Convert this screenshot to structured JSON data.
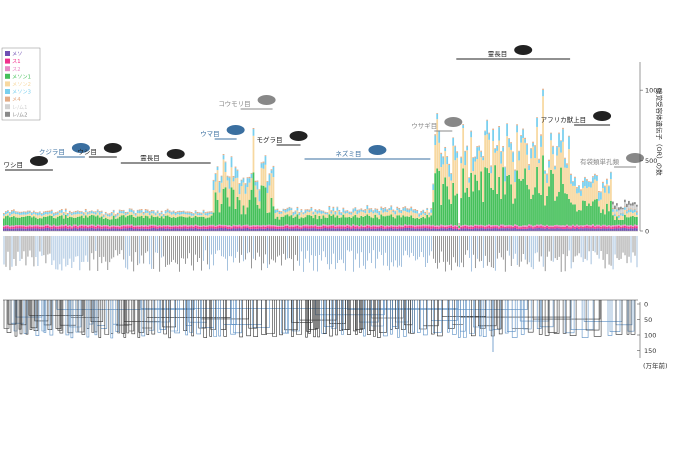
{
  "chart_data": {
    "type": "bar",
    "stacked": true,
    "legend": [
      {
        "name": "メソ",
        "color": "#6f4fb3"
      },
      {
        "name": "ス1",
        "color": "#f0308c"
      },
      {
        "name": "ス2",
        "color": "#e889c6"
      },
      {
        "name": "メソン1",
        "color": "#45c05a"
      },
      {
        "name": "メソン2",
        "color": "#f7d8a0"
      },
      {
        "name": "メソン3",
        "color": "#78cfee"
      },
      {
        "name": "メ4",
        "color": "#e3ab85"
      },
      {
        "name": "レ/ム1",
        "color": "#d2d2d2"
      },
      {
        "name": "レ/ム2",
        "color": "#8a8a8a"
      }
    ],
    "y_axis": {
      "label": "嗅覚受容体遺伝子（OR）の数",
      "ticks": [
        "0",
        "500",
        "1000"
      ],
      "ylim": [
        0,
        1200
      ]
    },
    "time_axis": {
      "ticks": [
        "0",
        "50",
        "100",
        "150"
      ],
      "unit": "(万年前)"
    },
    "groups": [
      {
        "label": "ワシ目",
        "from": 0,
        "to": 26,
        "color": "#222222",
        "silhouette": "cat"
      },
      {
        "label": "クジラ目",
        "from": 26,
        "to": 42,
        "color": "#3a6fa0",
        "silhouette": "dolphin"
      },
      {
        "label": "ウシ目",
        "from": 42,
        "to": 58,
        "color": "#222222",
        "silhouette": "cow"
      },
      {
        "label": "霊長目",
        "from": 58,
        "to": 105,
        "color": "#222222",
        "silhouette": "monkey"
      },
      {
        "label": "ウマ目",
        "from": 105,
        "to": 118,
        "color": "#3a6fa0",
        "silhouette": "horse"
      },
      {
        "label": "コウモリ目",
        "from": 118,
        "to": 136,
        "color": "#888888",
        "silhouette": "bat"
      },
      {
        "label": "モグラ目",
        "from": 136,
        "to": 150,
        "color": "#222222",
        "silhouette": "mole"
      },
      {
        "label": "ネズミ目",
        "from": 150,
        "to": 215,
        "color": "#3a6fa0",
        "silhouette": "rat"
      },
      {
        "label": "ウサギ目",
        "from": 215,
        "to": 226,
        "color": "#888888",
        "silhouette": "rabbit"
      },
      {
        "label": "霊長目",
        "from": 226,
        "to": 285,
        "color": "#222222",
        "silhouette": "gorilla"
      },
      {
        "label": "アフリカ獣上目",
        "from": 285,
        "to": 305,
        "color": "#222222",
        "silhouette": "elephant"
      },
      {
        "label": "有袋類単孔類",
        "from": 305,
        "to": 318,
        "color": "#888888",
        "silhouette": "platypus"
      }
    ],
    "species_count": 318
  }
}
